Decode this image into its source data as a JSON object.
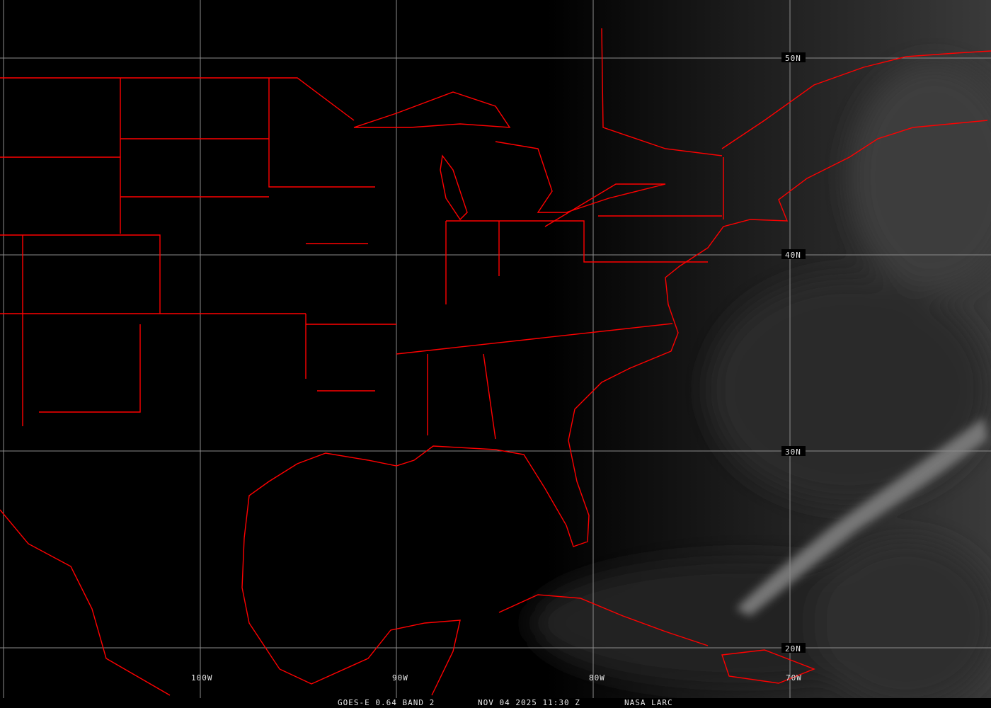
{
  "caption": {
    "satellite": "GOES-E 0.64 BAND 2",
    "datetime": "NOV 04 2025 11:30 Z",
    "source": "NASA LARC"
  },
  "grid": {
    "lat_labels": [
      "50N",
      "40N",
      "30N",
      "20N"
    ],
    "lon_labels": [
      "100W",
      "90W",
      "80W",
      "70W"
    ]
  },
  "colors": {
    "boundaries": "#ff0000",
    "grid": "#8c8c8c",
    "background": "#000000",
    "text": "#e8e8e8"
  },
  "icons": []
}
